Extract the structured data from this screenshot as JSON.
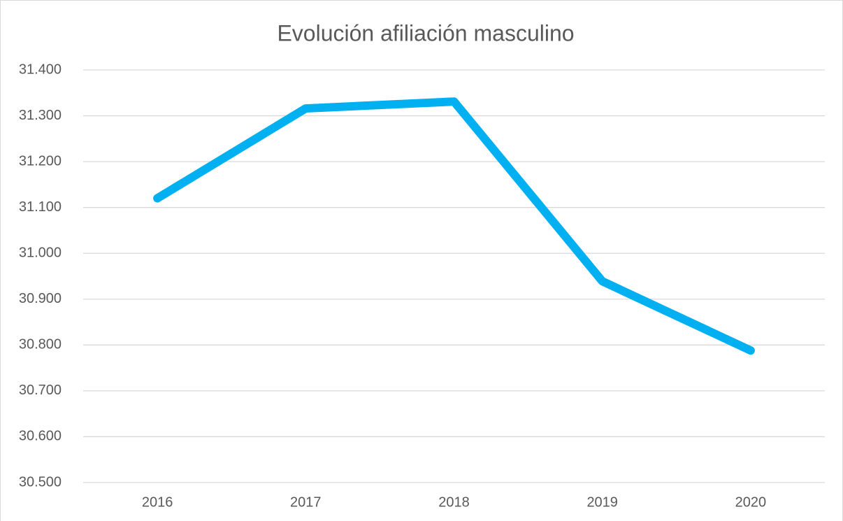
{
  "chart_data": {
    "type": "line",
    "title": "Evolución afiliación masculino",
    "categories": [
      "2016",
      "2017",
      "2018",
      "2019",
      "2020"
    ],
    "series": [
      {
        "name": "masculino",
        "color": "#00b0f0",
        "values": [
          31120,
          31316,
          31331,
          30939,
          30788
        ]
      }
    ],
    "ylim": [
      30500,
      31400
    ],
    "yticks": [
      {
        "value": 30500,
        "label": "30.500"
      },
      {
        "value": 30600,
        "label": "30.600"
      },
      {
        "value": 30700,
        "label": "30.700"
      },
      {
        "value": 30800,
        "label": "30.800"
      },
      {
        "value": 30900,
        "label": "30.900"
      },
      {
        "value": 31000,
        "label": "31.000"
      },
      {
        "value": 31100,
        "label": "31.100"
      },
      {
        "value": 31200,
        "label": "31.200"
      },
      {
        "value": 31300,
        "label": "31.300"
      },
      {
        "value": 31400,
        "label": "31.400"
      }
    ],
    "grid": true
  }
}
